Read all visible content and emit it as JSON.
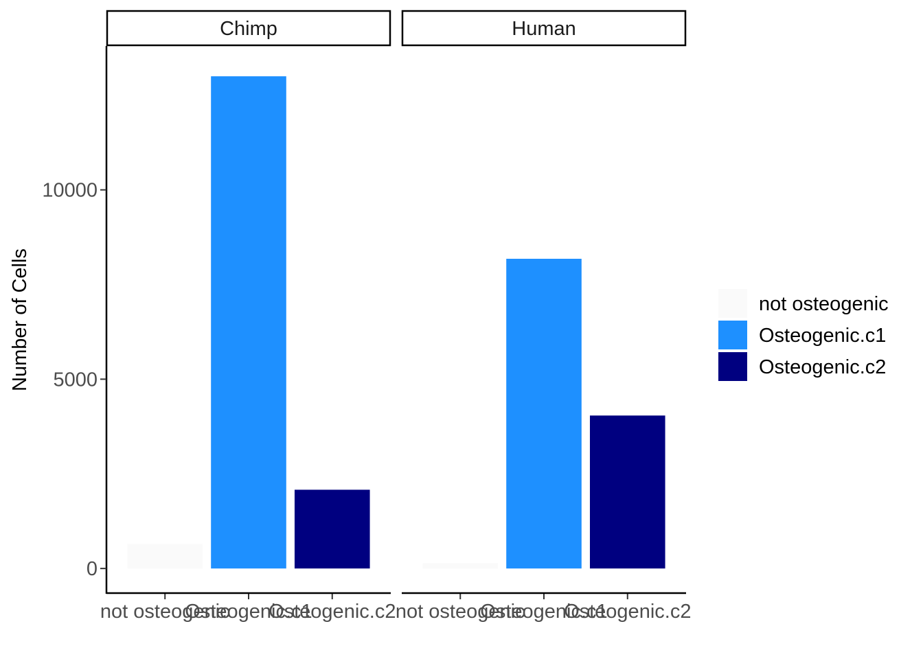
{
  "chart_data": {
    "type": "bar",
    "ylabel": "Number of Cells",
    "xlabel": "",
    "ylim": [
      -650,
      13800
    ],
    "yticks": [
      0,
      5000,
      10000
    ],
    "ytick_labels": [
      "0",
      "5000",
      "10000"
    ],
    "categories": [
      "not osteogenic",
      "Osteogenic.c1",
      "Osteogenic.c2"
    ],
    "panels": [
      {
        "name": "Chimp",
        "values": [
          650,
          13000,
          2080
        ]
      },
      {
        "name": "Human",
        "values": [
          140,
          8180,
          4040
        ]
      }
    ],
    "legend": {
      "position": "right",
      "entries": [
        {
          "label": "not osteogenic",
          "color": "#fafafa"
        },
        {
          "label": "Osteogenic.c1",
          "color": "#1e90ff"
        },
        {
          "label": "Osteogenic.c2",
          "color": "#000080"
        }
      ]
    },
    "grid": false
  }
}
